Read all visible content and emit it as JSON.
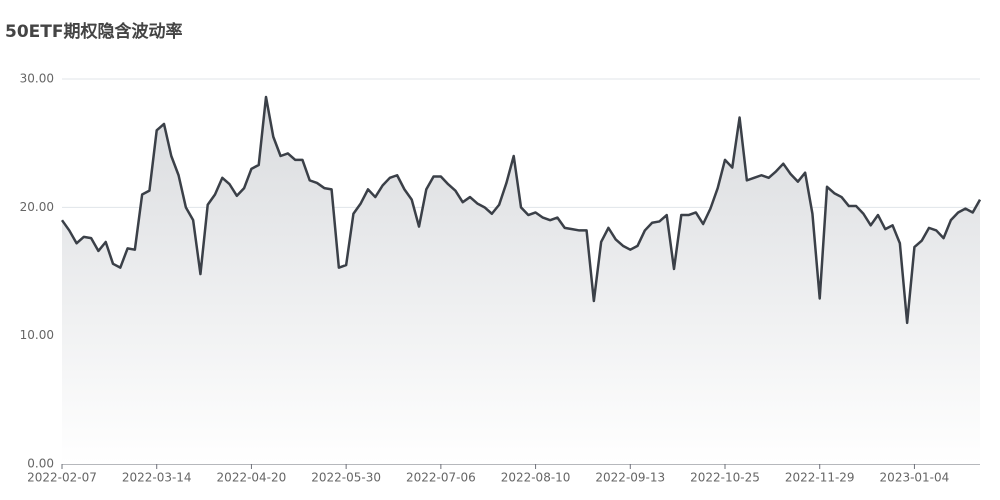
{
  "chart_data": {
    "type": "area",
    "title": "50ETF期权隐含波动率",
    "categories": [
      "2022-02-07",
      null,
      null,
      null,
      null,
      null,
      null,
      null,
      null,
      null,
      null,
      null,
      null,
      "2022-03-14",
      null,
      null,
      null,
      null,
      null,
      null,
      null,
      null,
      null,
      null,
      null,
      null,
      "2022-04-20",
      null,
      null,
      null,
      null,
      null,
      null,
      null,
      null,
      null,
      null,
      null,
      null,
      "2022-05-30",
      null,
      null,
      null,
      null,
      null,
      null,
      null,
      null,
      null,
      null,
      null,
      null,
      "2022-07-06",
      null,
      null,
      null,
      null,
      null,
      null,
      null,
      null,
      null,
      null,
      null,
      null,
      "2022-08-10",
      null,
      null,
      null,
      null,
      null,
      null,
      null,
      null,
      null,
      null,
      null,
      null,
      "2022-09-13",
      null,
      null,
      null,
      null,
      null,
      null,
      null,
      null,
      null,
      null,
      null,
      null,
      "2022-10-25",
      null,
      null,
      null,
      null,
      null,
      null,
      null,
      null,
      null,
      null,
      null,
      null,
      "2022-11-29",
      null,
      null,
      null,
      null,
      null,
      null,
      null,
      null,
      null,
      null,
      null,
      null,
      "2023-01-04",
      null,
      null,
      null,
      null,
      null,
      null,
      null,
      null,
      null
    ],
    "values": [
      19,
      18.2,
      17.2,
      17.7,
      17.6,
      16.6,
      17.3,
      15.6,
      15.3,
      16.8,
      16.7,
      21,
      21.3,
      26,
      26.5,
      24,
      22.5,
      20,
      19,
      14.8,
      20.2,
      21,
      22.3,
      21.8,
      20.9,
      21.5,
      23,
      23.3,
      28.6,
      25.5,
      24,
      24.2,
      23.7,
      23.7,
      22.1,
      21.9,
      21.5,
      21.4,
      15.3,
      15.5,
      19.5,
      20.3,
      21.4,
      20.8,
      21.7,
      22.3,
      22.5,
      21.4,
      20.6,
      18.5,
      21.4,
      22.4,
      22.4,
      21.8,
      21.3,
      20.4,
      20.8,
      20.3,
      20,
      19.5,
      20.2,
      21.9,
      24,
      20,
      19.4,
      19.6,
      19.2,
      19,
      19.2,
      18.4,
      18.3,
      18.2,
      18.2,
      12.7,
      17.3,
      18.4,
      17.5,
      17,
      16.7,
      17,
      18.2,
      18.8,
      18.9,
      19.4,
      15.2,
      19.4,
      19.4,
      19.6,
      18.7,
      19.9,
      21.5,
      23.7,
      23.1,
      27,
      22.1,
      22.3,
      22.5,
      22.3,
      22.8,
      23.4,
      22.6,
      22,
      22.7,
      19.5,
      12.9,
      21.6,
      21.1,
      20.8,
      20.1,
      20.1,
      19.5,
      18.6,
      19.4,
      18.3,
      18.6,
      17.2,
      11,
      16.9,
      17.4,
      18.4,
      18.2,
      17.6,
      19,
      19.6,
      19.9,
      19.6,
      20.6
    ],
    "color": "#3b4048",
    "ylim": [
      0,
      30
    ],
    "yticks": [
      {
        "value": 0,
        "label": "0.00"
      },
      {
        "value": 10,
        "label": "10.00"
      },
      {
        "value": 20,
        "label": "20.00"
      },
      {
        "value": 30,
        "label": "30.00"
      }
    ],
    "grid": true
  }
}
